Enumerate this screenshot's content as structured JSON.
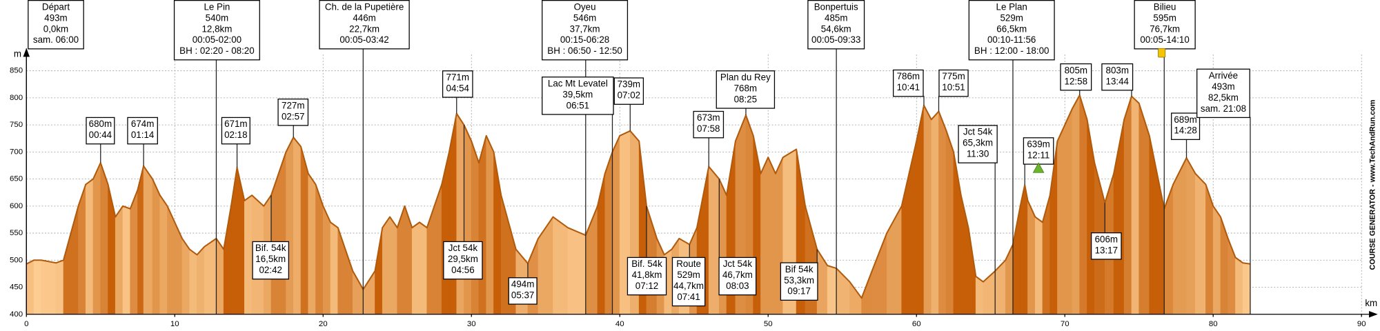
{
  "chart_data": {
    "type": "area",
    "y_label": "m",
    "x_label": "km",
    "credit": "COURSE GENERATOR - www.TechAndRun.com",
    "xlim": [
      0,
      90
    ],
    "ylim": [
      400,
      880
    ],
    "xticks": [
      0,
      10,
      20,
      30,
      40,
      50,
      60,
      70,
      80,
      90
    ],
    "yticks": [
      400,
      450,
      500,
      550,
      600,
      650,
      700,
      750,
      800,
      850
    ],
    "grid": true,
    "colors": {
      "flat": "#fdcc90",
      "steep": "#c65f08",
      "line": "#b05a0c"
    },
    "x": [
      0,
      0.5,
      1,
      2,
      2.5,
      3,
      3.5,
      4,
      4.5,
      5,
      5.5,
      6,
      6.5,
      7,
      7.5,
      7.9,
      8.5,
      9,
      9.5,
      10,
      10.5,
      11,
      11.5,
      12,
      12.8,
      13.3,
      13.8,
      14.2,
      14.7,
      15.2,
      16,
      16.5,
      17,
      17.5,
      18,
      18.5,
      19,
      19.5,
      20,
      20.5,
      21,
      21.5,
      22,
      22.7,
      23.5,
      24,
      24.5,
      25,
      25.5,
      26,
      26.5,
      27,
      27.5,
      28,
      28.5,
      29,
      29.5,
      30,
      30.5,
      31,
      31.5,
      32,
      32.5,
      33,
      33.8,
      34.5,
      35.5,
      36.5,
      37.7,
      38.5,
      39,
      39.5,
      40,
      40.7,
      41.3,
      41.8,
      42.5,
      43,
      43.5,
      44,
      44.7,
      45.2,
      46,
      46.7,
      47.2,
      47.8,
      48.5,
      49,
      49.5,
      50,
      50.5,
      51,
      51.9,
      52.5,
      53.3,
      54,
      54.6,
      55.5,
      56.3,
      57,
      58,
      59,
      59.5,
      60,
      60.5,
      61,
      61.5,
      62,
      62.5,
      63,
      63.5,
      64,
      64.5,
      65.3,
      66,
      66.5,
      67,
      67.3,
      67.5,
      68,
      68.5,
      69,
      69.5,
      70,
      70.5,
      71,
      71.5,
      72,
      72.7,
      73.3,
      74,
      74.5,
      75,
      75.7,
      76.7,
      77.3,
      78.2,
      78.8,
      79.5,
      80,
      80.5,
      81,
      81.5,
      82,
      82.5
    ],
    "values": [
      493,
      500,
      500,
      495,
      500,
      550,
      600,
      640,
      650,
      680,
      640,
      580,
      600,
      595,
      630,
      674,
      650,
      620,
      600,
      570,
      540,
      520,
      510,
      525,
      540,
      520,
      600,
      671,
      610,
      620,
      600,
      620,
      660,
      700,
      727,
      710,
      660,
      640,
      600,
      570,
      560,
      520,
      480,
      446,
      480,
      560,
      580,
      560,
      600,
      560,
      570,
      560,
      600,
      640,
      700,
      771,
      750,
      720,
      680,
      730,
      700,
      620,
      570,
      520,
      494,
      540,
      580,
      560,
      546,
      600,
      660,
      700,
      730,
      739,
      720,
      600,
      540,
      510,
      520,
      540,
      529,
      560,
      673,
      650,
      620,
      720,
      768,
      730,
      660,
      690,
      660,
      690,
      705,
      600,
      520,
      490,
      485,
      460,
      430,
      480,
      550,
      600,
      660,
      720,
      786,
      760,
      775,
      740,
      700,
      620,
      560,
      470,
      460,
      480,
      500,
      529,
      600,
      639,
      610,
      580,
      570,
      620,
      720,
      750,
      780,
      805,
      760,
      680,
      606,
      660,
      760,
      803,
      790,
      730,
      595,
      640,
      689,
      660,
      640,
      600,
      580,
      540,
      505,
      495,
      493
    ],
    "annotations": [
      {
        "lines": [
          "Départ",
          "493m",
          "0,0km",
          "sam. 06:00"
        ],
        "x": 0
      },
      {
        "lines": [
          "680m",
          "00:44"
        ],
        "x": 5
      },
      {
        "lines": [
          "674m",
          "01:14"
        ],
        "x": 7.9
      },
      {
        "lines": [
          "Le Pin",
          "540m",
          "12,8km",
          "00:05-02:00",
          "BH : 02:20 - 08:20"
        ],
        "x": 12.8
      },
      {
        "lines": [
          "671m",
          "02:18"
        ],
        "x": 14.2
      },
      {
        "lines": [
          "Bif. 54k",
          "16,5km",
          "02:42"
        ],
        "x": 16.5
      },
      {
        "lines": [
          "727m",
          "02:57"
        ],
        "x": 18
      },
      {
        "lines": [
          "Ch. de la Pupetière",
          "446m",
          "22,7km",
          "00:05-03:42"
        ],
        "x": 22.7
      },
      {
        "lines": [
          "771m",
          "04:54"
        ],
        "x": 29
      },
      {
        "lines": [
          "Jct 54k",
          "29,5km",
          "04:56"
        ],
        "x": 29.5
      },
      {
        "lines": [
          "494m",
          "05:37"
        ],
        "x": 33.8
      },
      {
        "lines": [
          "Oyeu",
          "546m",
          "37,7km",
          "00:15-06:28",
          "BH : 06:50 - 12:50"
        ],
        "x": 37.7
      },
      {
        "lines": [
          "Lac Mt Levatel",
          "39,5km",
          "06:51"
        ],
        "x": 39.5
      },
      {
        "lines": [
          "739m",
          "07:02"
        ],
        "x": 40.7
      },
      {
        "lines": [
          "Bif. 54k",
          "41,8km",
          "07:12"
        ],
        "x": 41.8
      },
      {
        "lines": [
          "Route",
          "529m",
          "44,7km",
          "07:41"
        ],
        "x": 44.7
      },
      {
        "lines": [
          "673m",
          "07:58"
        ],
        "x": 46
      },
      {
        "lines": [
          "Jct 54k",
          "46,7km",
          "08:03"
        ],
        "x": 46.7
      },
      {
        "lines": [
          "Plan du Rey",
          "768m",
          "08:25"
        ],
        "x": 48.5
      },
      {
        "lines": [
          "Bif 54k",
          "53,3km",
          "09:17"
        ],
        "x": 53.3
      },
      {
        "lines": [
          "Bonpertuis",
          "485m",
          "54,6km",
          "00:05-09:33"
        ],
        "x": 54.6
      },
      {
        "lines": [
          "786m",
          "10:41"
        ],
        "x": 60.5
      },
      {
        "lines": [
          "775m",
          "10:51"
        ],
        "x": 61.5
      },
      {
        "lines": [
          "Jct 54k",
          "65,3km",
          "11:30"
        ],
        "x": 65.3
      },
      {
        "lines": [
          "Le Plan",
          "529m",
          "66,5km",
          "00:10-11:56",
          "BH : 12:00 - 18:00"
        ],
        "x": 66.5
      },
      {
        "lines": [
          "639m",
          "12:11"
        ],
        "x": 67.3
      },
      {
        "lines": [
          "805m",
          "12:58"
        ],
        "x": 71
      },
      {
        "lines": [
          "606m",
          "13:17"
        ],
        "x": 72.7
      },
      {
        "lines": [
          "803m",
          "13:44"
        ],
        "x": 74.5
      },
      {
        "lines": [
          "Bilieu",
          "595m",
          "76,7km",
          "00:05-14:10"
        ],
        "x": 76.7
      },
      {
        "lines": [
          "689m",
          "14:28"
        ],
        "x": 78.2
      },
      {
        "lines": [
          "Arrivée",
          "493m",
          "82,5km",
          "sam. 21:08"
        ],
        "x": 82.5
      }
    ]
  }
}
